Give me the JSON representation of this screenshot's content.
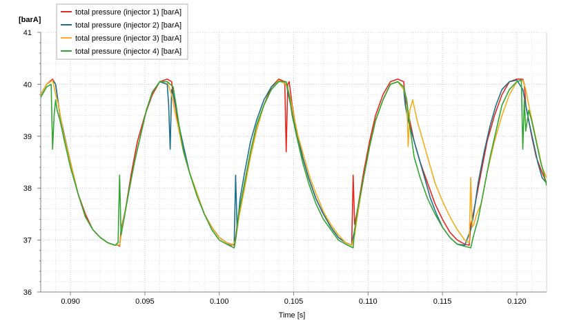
{
  "chart_data": {
    "type": "line",
    "xlabel": "Time [s]",
    "ylabel_unit": "[barA]",
    "xlim": [
      0.088,
      0.122
    ],
    "ylim": [
      36,
      41
    ],
    "xticks": [
      0.09,
      0.095,
      0.1,
      0.105,
      0.11,
      0.115,
      0.12
    ],
    "xtick_labels": [
      "0.090",
      "0.095",
      "0.100",
      "0.105",
      "0.110",
      "0.115",
      "0.120"
    ],
    "yticks": [
      36,
      37,
      38,
      39,
      40,
      41
    ],
    "ytick_labels": [
      "36",
      "37",
      "38",
      "39",
      "40",
      "41"
    ],
    "grid": true,
    "legend_position": "top-left",
    "series": [
      {
        "name": "total pressure (injector 1) [barA]",
        "color": "#e8261b",
        "x": [
          0.088,
          0.0884,
          0.0888,
          0.089,
          0.0891,
          0.0893,
          0.0896,
          0.09,
          0.0905,
          0.091,
          0.0915,
          0.092,
          0.0925,
          0.093,
          0.0932,
          0.0933,
          0.0934,
          0.0937,
          0.0941,
          0.0945,
          0.095,
          0.0955,
          0.096,
          0.0965,
          0.0968,
          0.0969,
          0.0971,
          0.0973,
          0.0976,
          0.098,
          0.0985,
          0.099,
          0.0995,
          0.1,
          0.1005,
          0.1008,
          0.101,
          0.1011,
          0.1013,
          0.1017,
          0.1021,
          0.1025,
          0.103,
          0.1035,
          0.104,
          0.1044,
          0.1045,
          0.1046,
          0.1047,
          0.1049,
          0.1052,
          0.1056,
          0.106,
          0.1065,
          0.107,
          0.1075,
          0.108,
          0.1085,
          0.1089,
          0.109,
          0.1091,
          0.1093,
          0.1097,
          0.1101,
          0.1105,
          0.111,
          0.1115,
          0.112,
          0.1124,
          0.1125,
          0.1126,
          0.1128,
          0.1131,
          0.1135,
          0.114,
          0.1145,
          0.115,
          0.1155,
          0.116,
          0.1165,
          0.1168,
          0.1169,
          0.117,
          0.1172,
          0.1176,
          0.118,
          0.1185,
          0.119,
          0.1195,
          0.12,
          0.1204,
          0.1205,
          0.1206,
          0.1208,
          0.121,
          0.1213,
          0.1217,
          0.122
        ],
        "y": [
          39.8,
          40.0,
          40.1,
          40.0,
          39.8,
          39.4,
          39.0,
          38.5,
          37.9,
          37.5,
          37.2,
          37.05,
          36.95,
          36.9,
          36.9,
          36.88,
          37.2,
          37.6,
          38.3,
          38.9,
          39.4,
          39.8,
          40.05,
          40.1,
          40.05,
          39.8,
          39.5,
          39.1,
          38.7,
          38.3,
          37.9,
          37.5,
          37.25,
          37.05,
          36.95,
          36.92,
          36.9,
          37.05,
          37.5,
          38.1,
          38.7,
          39.2,
          39.6,
          39.95,
          40.1,
          40.05,
          38.7,
          40.0,
          40.05,
          39.6,
          39.1,
          38.6,
          38.2,
          37.8,
          37.5,
          37.25,
          37.05,
          36.95,
          36.9,
          38.25,
          37.3,
          37.6,
          38.3,
          38.9,
          39.4,
          39.8,
          40.05,
          40.1,
          40.05,
          39.7,
          39.6,
          39.3,
          38.9,
          38.5,
          38.1,
          37.7,
          37.4,
          37.15,
          37.0,
          36.92,
          36.9,
          37.3,
          37.4,
          37.7,
          38.3,
          38.9,
          39.4,
          39.8,
          40.05,
          40.1,
          40.1,
          40.0,
          39.6,
          39.3,
          39.0,
          38.6,
          38.3,
          38.1
        ]
      },
      {
        "name": "total pressure (injector 2) [barA]",
        "color": "#1b6f8a",
        "x": [
          0.088,
          0.0884,
          0.0888,
          0.089,
          0.0891,
          0.0893,
          0.0896,
          0.09,
          0.0905,
          0.091,
          0.0915,
          0.092,
          0.0925,
          0.093,
          0.0932,
          0.0933,
          0.0935,
          0.0939,
          0.0943,
          0.0947,
          0.0951,
          0.0955,
          0.096,
          0.0965,
          0.0966,
          0.0967,
          0.0968,
          0.097,
          0.0973,
          0.0976,
          0.098,
          0.0985,
          0.099,
          0.0995,
          0.1,
          0.1005,
          0.1008,
          0.101,
          0.1011,
          0.1012,
          0.1014,
          0.1017,
          0.1021,
          0.1025,
          0.103,
          0.1035,
          0.104,
          0.1045,
          0.1048,
          0.105,
          0.1052,
          0.1056,
          0.106,
          0.1065,
          0.107,
          0.1075,
          0.108,
          0.1085,
          0.1089,
          0.1091,
          0.1093,
          0.1097,
          0.1101,
          0.1105,
          0.111,
          0.1115,
          0.112,
          0.1124,
          0.1125,
          0.1127,
          0.113,
          0.1134,
          0.1138,
          0.1142,
          0.1146,
          0.115,
          0.1155,
          0.116,
          0.1165,
          0.1169,
          0.1171,
          0.1174,
          0.1178,
          0.1182,
          0.1186,
          0.119,
          0.1195,
          0.12,
          0.1204,
          0.1206,
          0.1208,
          0.1211,
          0.1214,
          0.1217,
          0.122
        ],
        "y": [
          39.8,
          40.0,
          40.08,
          40.0,
          39.8,
          39.4,
          39.0,
          38.5,
          37.9,
          37.45,
          37.2,
          37.05,
          36.95,
          36.9,
          36.9,
          36.9,
          37.3,
          37.9,
          38.5,
          39.0,
          39.5,
          39.85,
          40.05,
          40.0,
          39.6,
          38.75,
          39.9,
          39.7,
          39.2,
          38.8,
          38.3,
          37.9,
          37.5,
          37.25,
          37.05,
          36.95,
          36.9,
          36.92,
          38.25,
          37.2,
          37.8,
          38.3,
          38.9,
          39.3,
          39.7,
          39.95,
          40.08,
          40.0,
          39.6,
          39.3,
          39.1,
          38.6,
          38.2,
          37.8,
          37.5,
          37.25,
          37.05,
          36.95,
          36.9,
          37.2,
          37.5,
          38.2,
          38.8,
          39.3,
          39.7,
          40.0,
          40.05,
          39.9,
          39.6,
          39.3,
          39.0,
          38.6,
          38.2,
          37.8,
          37.5,
          37.25,
          37.05,
          36.92,
          36.9,
          37.2,
          37.5,
          38.1,
          38.7,
          39.2,
          39.6,
          39.9,
          40.05,
          40.08,
          39.9,
          39.6,
          39.3,
          38.9,
          38.5,
          38.2,
          38.1
        ]
      },
      {
        "name": "total pressure (injector 3) [barA]",
        "color": "#f2ac1c",
        "x": [
          0.088,
          0.0884,
          0.0888,
          0.0889,
          0.089,
          0.0892,
          0.0895,
          0.09,
          0.0905,
          0.091,
          0.0915,
          0.092,
          0.0925,
          0.093,
          0.0933,
          0.0935,
          0.0939,
          0.0943,
          0.0947,
          0.0951,
          0.0955,
          0.096,
          0.0965,
          0.0968,
          0.097,
          0.0973,
          0.0976,
          0.098,
          0.0985,
          0.099,
          0.0995,
          0.1,
          0.1005,
          0.1009,
          0.1011,
          0.1013,
          0.1017,
          0.1021,
          0.1025,
          0.103,
          0.1035,
          0.104,
          0.1045,
          0.1048,
          0.105,
          0.1053,
          0.1057,
          0.1061,
          0.1065,
          0.107,
          0.1075,
          0.108,
          0.1085,
          0.1089,
          0.1091,
          0.1093,
          0.1097,
          0.1101,
          0.1105,
          0.111,
          0.1115,
          0.112,
          0.1124,
          0.1126,
          0.1127,
          0.1128,
          0.113,
          0.1133,
          0.1137,
          0.1141,
          0.1145,
          0.115,
          0.1155,
          0.116,
          0.1165,
          0.1168,
          0.1169,
          0.117,
          0.1171,
          0.1173,
          0.1176,
          0.118,
          0.1185,
          0.119,
          0.1195,
          0.12,
          0.1204,
          0.1206,
          0.1208,
          0.1211,
          0.1214,
          0.1217,
          0.122
        ],
        "y": [
          39.8,
          40.0,
          40.08,
          39.95,
          39.8,
          39.6,
          39.1,
          38.5,
          37.9,
          37.45,
          37.2,
          37.05,
          36.95,
          36.9,
          36.9,
          37.3,
          37.9,
          38.5,
          39.0,
          39.5,
          39.85,
          40.05,
          40.05,
          39.8,
          39.5,
          39.1,
          38.7,
          38.3,
          37.9,
          37.5,
          37.25,
          37.05,
          36.95,
          36.9,
          37.0,
          37.4,
          38.0,
          38.6,
          39.1,
          39.6,
          39.9,
          40.08,
          40.0,
          39.7,
          39.4,
          39.0,
          38.6,
          38.2,
          37.9,
          37.55,
          37.3,
          37.1,
          36.95,
          36.9,
          37.1,
          37.5,
          38.2,
          38.8,
          39.3,
          39.7,
          40.0,
          40.05,
          39.9,
          39.7,
          38.8,
          39.5,
          39.7,
          39.3,
          38.9,
          38.5,
          38.1,
          37.75,
          37.45,
          37.2,
          37.0,
          36.95,
          38.2,
          37.25,
          37.3,
          37.5,
          37.7,
          38.3,
          38.9,
          39.4,
          39.8,
          40.05,
          40.08,
          39.9,
          39.6,
          39.2,
          38.8,
          38.4,
          38.2
        ]
      },
      {
        "name": "total pressure (injector 4) [barA]",
        "color": "#33a532",
        "x": [
          0.088,
          0.0884,
          0.0887,
          0.0888,
          0.0889,
          0.089,
          0.0891,
          0.0893,
          0.0896,
          0.09,
          0.0905,
          0.091,
          0.0915,
          0.092,
          0.0925,
          0.093,
          0.0932,
          0.0933,
          0.0934,
          0.0936,
          0.0939,
          0.0943,
          0.0947,
          0.0951,
          0.0955,
          0.096,
          0.0965,
          0.0969,
          0.0971,
          0.0973,
          0.0976,
          0.098,
          0.0985,
          0.099,
          0.0995,
          0.1,
          0.1005,
          0.101,
          0.1011,
          0.1013,
          0.1017,
          0.1021,
          0.1025,
          0.103,
          0.1035,
          0.104,
          0.1045,
          0.1047,
          0.1049,
          0.1052,
          0.1056,
          0.106,
          0.1065,
          0.107,
          0.1075,
          0.108,
          0.1085,
          0.109,
          0.1091,
          0.1093,
          0.1097,
          0.1101,
          0.1105,
          0.111,
          0.1115,
          0.112,
          0.1124,
          0.1126,
          0.1128,
          0.1131,
          0.1135,
          0.114,
          0.1145,
          0.115,
          0.1155,
          0.116,
          0.1165,
          0.1169,
          0.1171,
          0.1174,
          0.1178,
          0.1182,
          0.1186,
          0.119,
          0.1195,
          0.12,
          0.1203,
          0.1204,
          0.1205,
          0.1206,
          0.1208,
          0.121,
          0.1213,
          0.1216,
          0.1218,
          0.122
        ],
        "y": [
          39.75,
          39.95,
          40.0,
          38.75,
          39.4,
          39.7,
          39.5,
          39.3,
          38.9,
          38.4,
          37.9,
          37.45,
          37.2,
          37.05,
          36.95,
          36.9,
          36.95,
          38.25,
          37.1,
          37.4,
          37.9,
          38.5,
          39.0,
          39.5,
          39.85,
          40.05,
          40.05,
          39.95,
          39.6,
          39.2,
          38.7,
          38.3,
          37.85,
          37.5,
          37.2,
          37.0,
          36.92,
          36.85,
          37.0,
          37.5,
          38.1,
          38.7,
          39.2,
          39.6,
          39.9,
          40.05,
          40.05,
          39.8,
          39.4,
          39.0,
          38.5,
          38.1,
          37.7,
          37.4,
          37.2,
          37.0,
          36.92,
          36.85,
          37.2,
          37.6,
          38.2,
          38.8,
          39.3,
          39.7,
          40.0,
          40.05,
          39.95,
          39.7,
          39.2,
          38.6,
          38.2,
          37.8,
          37.5,
          37.25,
          37.05,
          36.92,
          36.88,
          36.85,
          37.1,
          37.4,
          38.0,
          38.6,
          39.1,
          39.6,
          39.9,
          40.05,
          40.08,
          38.75,
          39.7,
          39.1,
          39.5,
          39.3,
          38.9,
          38.5,
          38.3,
          38.05
        ]
      }
    ]
  }
}
